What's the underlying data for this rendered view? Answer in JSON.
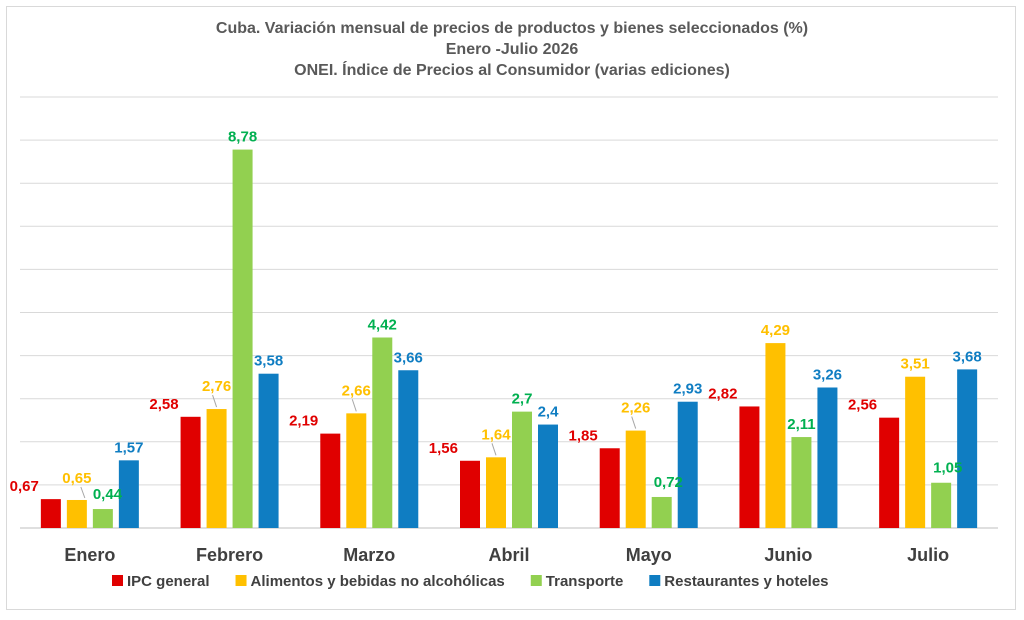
{
  "chart_data": {
    "type": "bar",
    "title": "Cuba. Variación mensual de precios de productos y bienes seleccionados (%)",
    "subtitle": "Enero -Julio 2026",
    "source": "ONEI. Índice de Precios al Consumidor (varias ediciones)",
    "categories": [
      "Enero",
      "Febrero",
      "Marzo",
      "Abril",
      "Mayo",
      "Junio",
      "Julio"
    ],
    "series": [
      {
        "name": "IPC general",
        "color": "#e00000",
        "values": [
          0.67,
          2.58,
          2.19,
          1.56,
          1.85,
          2.82,
          2.56
        ],
        "labels": [
          "0,67",
          "2,58",
          "2,19",
          "1,56",
          "1,85",
          "2,82",
          "2,56"
        ]
      },
      {
        "name": "Alimentos y bebidas no alcohólicas",
        "color": "#ffc000",
        "values": [
          0.65,
          2.76,
          2.66,
          1.64,
          2.26,
          4.29,
          3.51
        ],
        "labels": [
          "0,65",
          "2,76",
          "2,66",
          "1,64",
          "2,26",
          "4,29",
          "3,51"
        ]
      },
      {
        "name": "Transporte",
        "color": "#92d050",
        "values": [
          0.44,
          8.78,
          4.42,
          2.7,
          0.72,
          2.11,
          1.05
        ],
        "labels": [
          "0,44",
          "8,78",
          "4,42",
          "2,7",
          "0,72",
          "2,11",
          "1,05"
        ]
      },
      {
        "name": "Restaurantes y hoteles",
        "color": "#0f7dc2",
        "values": [
          1.57,
          3.58,
          3.66,
          2.4,
          2.93,
          3.26,
          3.68
        ],
        "labels": [
          "1,57",
          "3,58",
          "3,66",
          "2,4",
          "2,93",
          "3,26",
          "3,68"
        ]
      }
    ],
    "label_colors": [
      "#e00000",
      "#ffc000",
      "#00b050",
      "#0f7dc2"
    ],
    "ylim": [
      0,
      10
    ],
    "grid": true,
    "legend": "bottom"
  }
}
